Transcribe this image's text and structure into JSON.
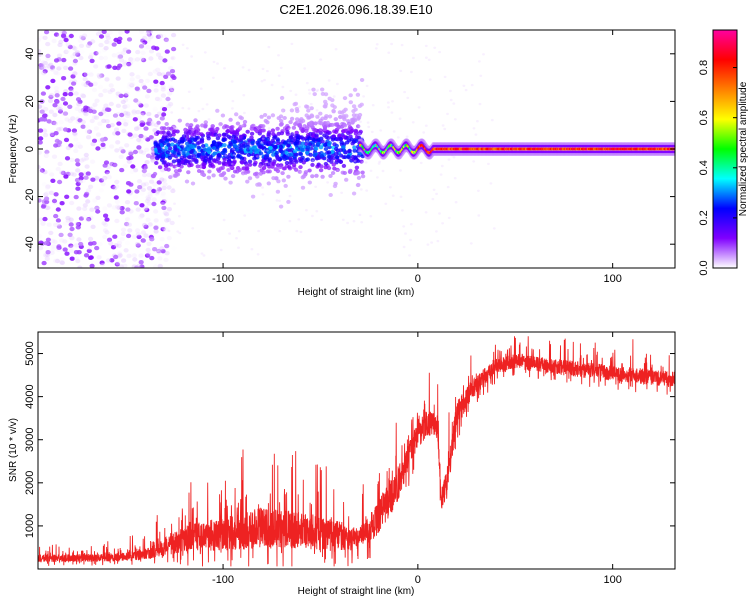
{
  "title": "C2E1.2026.096.18.39.E10",
  "chart_data": [
    {
      "type": "heatmap",
      "title": "C2E1.2026.096.18.39.E10",
      "xlabel": "Height of straight line (km)",
      "ylabel": "Frequency (Hz)",
      "xlim": [
        -195,
        132
      ],
      "ylim": [
        -50,
        50
      ],
      "xticks": [
        -100,
        0,
        100
      ],
      "xtick_labels": [
        "-100",
        "0",
        "100"
      ],
      "yticks": [
        -40,
        -20,
        0,
        20,
        40
      ],
      "ytick_labels": [
        "-40",
        "-20",
        "0",
        "20",
        "40"
      ],
      "colorbar": {
        "label": "Normalized spectral amplitude",
        "range": [
          0,
          0.95
        ],
        "ticks": [
          0.0,
          0.2,
          0.4,
          0.6,
          0.8
        ],
        "tick_labels": [
          "0.0",
          "0.2",
          "0.4",
          "0.6",
          "0.8"
        ],
        "colormap": [
          "#ffffff",
          "#8000ff",
          "#0000ff",
          "#00ffff",
          "#00ff00",
          "#ffff00",
          "#ff8000",
          "#ff0000",
          "#ff00a0"
        ]
      },
      "regions": [
        {
          "x_range": [
            -195,
            -130
          ],
          "freq_spread_hz": 50,
          "amplitude_range": [
            0.0,
            0.1
          ],
          "description": "noise"
        },
        {
          "x_range": [
            -130,
            -30
          ],
          "freq_spread_hz": 18,
          "amplitude_range": [
            0.05,
            0.35
          ]
        },
        {
          "x_range": [
            -30,
            0
          ],
          "freq_spread_hz": 4,
          "amplitude_range": [
            0.3,
            0.7
          ]
        },
        {
          "x_range": [
            0,
            132
          ],
          "freq_spread_hz": 2,
          "amplitude_range": [
            0.7,
            0.9
          ]
        }
      ]
    },
    {
      "type": "line",
      "xlabel": "Height of straight line (km)",
      "ylabel": "SNR (10 * v/v)",
      "xlim": [
        -195,
        132
      ],
      "ylim": [
        0,
        5500
      ],
      "xticks": [
        -100,
        0,
        100
      ],
      "xtick_labels": [
        "-100",
        "0",
        "100"
      ],
      "yticks": [
        1000,
        2000,
        3000,
        4000,
        5000
      ],
      "ytick_labels": [
        "1000",
        "2000",
        "3000",
        "4000",
        "5000"
      ],
      "color": "#ee2222",
      "series": [
        {
          "name": "SNR",
          "x": [
            -195,
            -160,
            -140,
            -120,
            -100,
            -80,
            -60,
            -40,
            -30,
            -20,
            -10,
            0,
            5,
            10,
            12,
            15,
            20,
            30,
            40,
            50,
            60,
            80,
            100,
            120,
            132
          ],
          "y": [
            250,
            260,
            330,
            700,
            820,
            950,
            900,
            750,
            700,
            1200,
            2000,
            3100,
            3400,
            3300,
            1600,
            2000,
            3600,
            4300,
            4700,
            4850,
            4750,
            4650,
            4550,
            4450,
            4400
          ],
          "noise": [
            150,
            150,
            200,
            500,
            650,
            800,
            700,
            600,
            400,
            700,
            700,
            500,
            500,
            450,
            350,
            600,
            500,
            400,
            300,
            300,
            300,
            300,
            300,
            300,
            300
          ]
        }
      ]
    }
  ]
}
